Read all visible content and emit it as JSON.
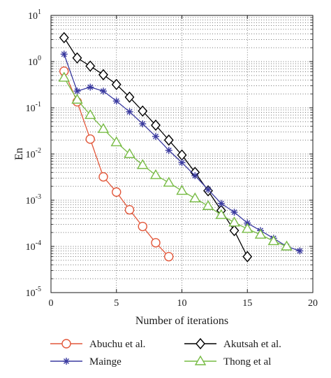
{
  "chart_data": {
    "type": "line",
    "title": "",
    "xlabel": "Number of iterations",
    "ylabel": "En",
    "xlim": [
      0,
      20
    ],
    "ylim": [
      1e-05,
      10
    ],
    "yscale": "log",
    "grid": true,
    "x_ticks": [
      "0",
      "5",
      "10",
      "15",
      "20"
    ],
    "y_ticks": [
      {
        "base": "10",
        "exp": "-5",
        "value": 1e-05
      },
      {
        "base": "10",
        "exp": "-4",
        "value": 0.0001
      },
      {
        "base": "10",
        "exp": "-3",
        "value": 0.001
      },
      {
        "base": "10",
        "exp": "-2",
        "value": 0.01
      },
      {
        "base": "10",
        "exp": "-1",
        "value": 0.1
      },
      {
        "base": "10",
        "exp": "0",
        "value": 1
      },
      {
        "base": "10",
        "exp": "1",
        "value": 10
      }
    ],
    "legend_position": "bottom",
    "series": [
      {
        "name": "Abuchu et al.",
        "color": "#e2573a",
        "marker": "circle",
        "x": [
          1,
          2,
          3,
          4,
          5,
          6,
          7,
          8,
          9
        ],
        "y": [
          0.62,
          0.135,
          0.021,
          0.0032,
          0.0015,
          0.00062,
          0.00027,
          0.00012,
          6e-05
        ]
      },
      {
        "name": "Akutsah et al.",
        "color": "#000000",
        "marker": "diamond",
        "x": [
          1,
          2,
          3,
          4,
          5,
          6,
          7,
          8,
          9,
          10,
          11,
          12,
          13,
          14,
          15
        ],
        "y": [
          3.3,
          1.2,
          0.8,
          0.52,
          0.32,
          0.17,
          0.085,
          0.042,
          0.02,
          0.0095,
          0.004,
          0.0016,
          0.0006,
          0.00022,
          6e-05
        ]
      },
      {
        "name": "Mainge",
        "color": "#3a3aa0",
        "marker": "asterisk",
        "x": [
          1,
          2,
          3,
          4,
          5,
          6,
          7,
          8,
          9,
          10,
          11,
          12,
          13,
          14,
          15,
          16,
          17,
          18,
          19
        ],
        "y": [
          1.45,
          0.23,
          0.28,
          0.23,
          0.14,
          0.082,
          0.045,
          0.024,
          0.012,
          0.0065,
          0.0034,
          0.0017,
          0.00085,
          0.00055,
          0.00032,
          0.00022,
          0.00015,
          0.0001,
          8e-05
        ]
      },
      {
        "name": "Thong et al",
        "color": "#77bb44",
        "marker": "triangle",
        "x": [
          1,
          2,
          3,
          4,
          5,
          6,
          7,
          8,
          9,
          10,
          11,
          12,
          13,
          14,
          15,
          16,
          17,
          18
        ],
        "y": [
          0.45,
          0.15,
          0.07,
          0.035,
          0.018,
          0.01,
          0.0058,
          0.0035,
          0.0024,
          0.0016,
          0.0011,
          0.00075,
          0.00048,
          0.00033,
          0.00024,
          0.00018,
          0.00013,
          0.0001
        ]
      }
    ]
  }
}
